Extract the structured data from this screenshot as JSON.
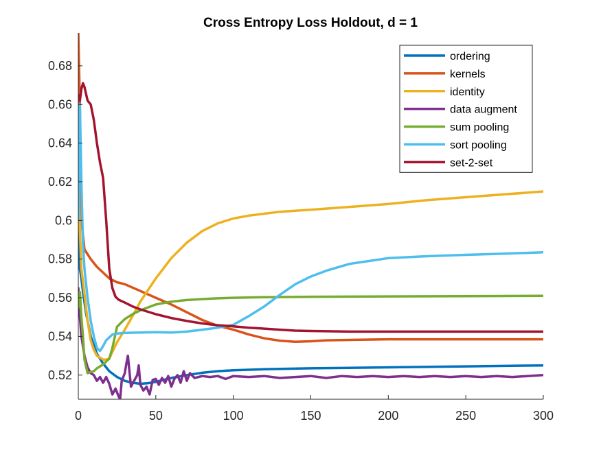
{
  "chart_data": {
    "type": "line",
    "title": "Cross Entropy Loss Holdout, d = 1",
    "xlabel": "",
    "ylabel": "",
    "xlim": [
      0,
      300
    ],
    "ylim": [
      0.5075,
      0.697
    ],
    "xticks": [
      0,
      50,
      100,
      150,
      200,
      250,
      300
    ],
    "yticks": [
      0.52,
      0.54,
      0.56,
      0.58,
      0.6,
      0.62,
      0.64,
      0.66,
      0.68
    ],
    "ytick_labels": [
      "0.52",
      "0.54",
      "0.56",
      "0.58",
      "0.6",
      "0.62",
      "0.64",
      "0.66",
      "0.68"
    ],
    "xtick_labels": [
      "0",
      "50",
      "100",
      "150",
      "200",
      "250",
      "300"
    ],
    "legend_position": "top-right",
    "series": [
      {
        "name": "ordering",
        "color": "#0072BD",
        "x": [
          0,
          1,
          2,
          3,
          5,
          8,
          12,
          16,
          20,
          25,
          30,
          35,
          40,
          45,
          50,
          55,
          60,
          70,
          80,
          90,
          100,
          120,
          150,
          200,
          250,
          300
        ],
        "y": [
          0.62,
          0.575,
          0.57,
          0.563,
          0.552,
          0.54,
          0.531,
          0.526,
          0.522,
          0.519,
          0.517,
          0.516,
          0.5155,
          0.5158,
          0.5165,
          0.5175,
          0.5185,
          0.52,
          0.5212,
          0.522,
          0.5225,
          0.523,
          0.5235,
          0.524,
          0.5245,
          0.525
        ]
      },
      {
        "name": "kernels",
        "color": "#D95319",
        "x": [
          0,
          1,
          2,
          4,
          8,
          12,
          16,
          20,
          25,
          30,
          40,
          50,
          60,
          70,
          80,
          90,
          100,
          110,
          120,
          130,
          140,
          150,
          160,
          200,
          250,
          300
        ],
        "y": [
          0.697,
          0.66,
          0.6,
          0.585,
          0.58,
          0.576,
          0.573,
          0.57,
          0.568,
          0.567,
          0.5635,
          0.56,
          0.5565,
          0.5525,
          0.5485,
          0.5455,
          0.5435,
          0.541,
          0.539,
          0.5378,
          0.5372,
          0.5375,
          0.538,
          0.5385,
          0.5385,
          0.5385
        ]
      },
      {
        "name": "identity",
        "color": "#EDB120",
        "x": [
          0,
          1,
          2,
          4,
          6,
          8,
          10,
          12,
          14,
          16,
          18,
          20,
          22,
          25,
          30,
          35,
          40,
          50,
          60,
          70,
          80,
          90,
          100,
          110,
          120,
          130,
          140,
          150,
          175,
          200,
          225,
          250,
          275,
          300
        ],
        "y": [
          0.622,
          0.595,
          0.575,
          0.562,
          0.548,
          0.538,
          0.533,
          0.53,
          0.529,
          0.528,
          0.528,
          0.5285,
          0.532,
          0.537,
          0.5435,
          0.5505,
          0.558,
          0.57,
          0.5805,
          0.5885,
          0.5945,
          0.5985,
          0.601,
          0.6025,
          0.6035,
          0.6045,
          0.605,
          0.6055,
          0.607,
          0.6085,
          0.6105,
          0.612,
          0.6135,
          0.615
        ]
      },
      {
        "name": "data augment",
        "color": "#7E2F8E",
        "x": [
          0,
          1,
          2,
          4,
          6,
          8,
          10,
          12,
          14,
          16,
          18,
          20,
          22,
          24,
          26,
          27,
          28,
          30,
          31,
          32,
          34,
          36,
          38,
          39,
          40,
          42,
          44,
          46,
          48,
          50,
          52,
          54,
          56,
          58,
          60,
          62,
          64,
          66,
          68,
          70,
          72,
          75,
          80,
          85,
          90,
          95,
          100,
          110,
          120,
          130,
          140,
          150,
          160,
          170,
          180,
          190,
          200,
          210,
          220,
          230,
          240,
          250,
          260,
          270,
          280,
          290,
          300
        ],
        "y": [
          0.565,
          0.55,
          0.54,
          0.53,
          0.524,
          0.521,
          0.52,
          0.517,
          0.519,
          0.516,
          0.519,
          0.5155,
          0.51,
          0.513,
          0.509,
          0.5075,
          0.517,
          0.521,
          0.526,
          0.53,
          0.514,
          0.517,
          0.52,
          0.525,
          0.515,
          0.512,
          0.514,
          0.51,
          0.5175,
          0.518,
          0.515,
          0.5185,
          0.516,
          0.5195,
          0.514,
          0.518,
          0.52,
          0.516,
          0.522,
          0.517,
          0.521,
          0.5185,
          0.5195,
          0.519,
          0.5195,
          0.518,
          0.5195,
          0.519,
          0.5195,
          0.5185,
          0.519,
          0.5195,
          0.5185,
          0.5195,
          0.519,
          0.5195,
          0.519,
          0.5195,
          0.519,
          0.5195,
          0.519,
          0.5195,
          0.519,
          0.5195,
          0.519,
          0.5195,
          0.52
        ]
      },
      {
        "name": "sum pooling",
        "color": "#77AC30",
        "x": [
          0,
          1,
          2,
          3,
          4,
          6,
          8,
          10,
          12,
          14,
          16,
          18,
          20,
          22,
          25,
          30,
          35,
          40,
          50,
          60,
          70,
          80,
          90,
          100,
          120,
          150,
          200,
          250,
          300
        ],
        "y": [
          0.555,
          0.563,
          0.55,
          0.54,
          0.528,
          0.521,
          0.5215,
          0.522,
          0.5235,
          0.5245,
          0.5255,
          0.527,
          0.5285,
          0.534,
          0.545,
          0.549,
          0.5515,
          0.5535,
          0.5565,
          0.558,
          0.5588,
          0.5593,
          0.5597,
          0.56,
          0.5603,
          0.5605,
          0.5607,
          0.5608,
          0.561
        ]
      },
      {
        "name": "sort pooling",
        "color": "#4DBEEE",
        "x": [
          0,
          1,
          2,
          3,
          4,
          6,
          8,
          10,
          12,
          14,
          16,
          18,
          20,
          22,
          25,
          30,
          40,
          50,
          60,
          70,
          80,
          90,
          100,
          110,
          120,
          130,
          140,
          150,
          160,
          175,
          200,
          225,
          250,
          275,
          300
        ],
        "y": [
          0.6,
          0.66,
          0.62,
          0.588,
          0.575,
          0.56,
          0.548,
          0.54,
          0.534,
          0.5325,
          0.535,
          0.538,
          0.5395,
          0.541,
          0.5415,
          0.5418,
          0.542,
          0.5422,
          0.542,
          0.5425,
          0.5435,
          0.5445,
          0.546,
          0.5505,
          0.5555,
          0.5615,
          0.567,
          0.571,
          0.574,
          0.5775,
          0.5805,
          0.5815,
          0.5822,
          0.5828,
          0.5835
        ]
      },
      {
        "name": "set-2-set",
        "color": "#A2142F",
        "x": [
          0,
          1,
          2,
          3,
          4,
          6,
          8,
          10,
          12,
          14,
          16,
          18,
          20,
          22,
          24,
          26,
          30,
          35,
          40,
          50,
          60,
          70,
          80,
          90,
          100,
          110,
          120,
          130,
          140,
          150,
          175,
          200,
          250,
          300
        ],
        "y": [
          0.665,
          0.662,
          0.668,
          0.671,
          0.669,
          0.662,
          0.66,
          0.652,
          0.64,
          0.63,
          0.622,
          0.6,
          0.575,
          0.565,
          0.5605,
          0.559,
          0.5575,
          0.5555,
          0.554,
          0.5515,
          0.5495,
          0.548,
          0.5467,
          0.5458,
          0.5452,
          0.5445,
          0.544,
          0.5435,
          0.543,
          0.5428,
          0.5425,
          0.5425,
          0.5425,
          0.5425
        ]
      }
    ]
  }
}
